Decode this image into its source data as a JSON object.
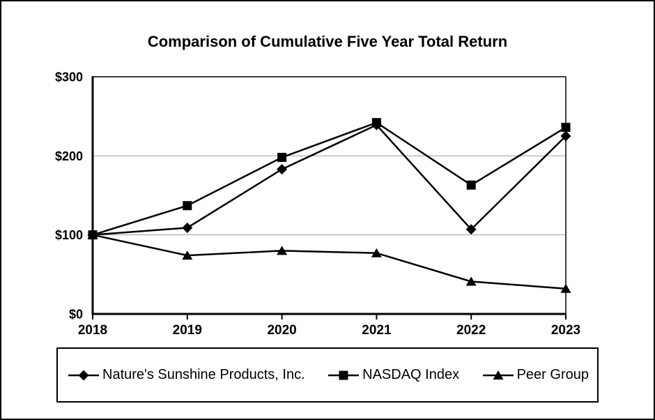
{
  "chart_data": {
    "type": "line",
    "title": "Comparison of Cumulative Five Year Total Return",
    "categories": [
      "2018",
      "2019",
      "2020",
      "2021",
      "2022",
      "2023"
    ],
    "series": [
      {
        "name": "Nature's Sunshine Products, Inc.",
        "marker": "diamond",
        "values": [
          100,
          109,
          183,
          239,
          107,
          225
        ]
      },
      {
        "name": "NASDAQ Index",
        "marker": "square",
        "values": [
          100,
          137,
          198,
          242,
          163,
          236
        ]
      },
      {
        "name": "Peer Group",
        "marker": "triangle",
        "values": [
          100,
          74,
          80,
          77,
          41,
          32
        ]
      }
    ],
    "xlabel": "",
    "ylabel": "",
    "ylim": [
      0,
      300
    ],
    "y_ticks": [
      {
        "label": "$0",
        "value": 0
      },
      {
        "label": "$100",
        "value": 100
      },
      {
        "label": "$200",
        "value": 200
      },
      {
        "label": "$300",
        "value": 300
      }
    ],
    "grid_values": [
      100,
      200
    ],
    "grid_on": true,
    "legend_position": "bottom",
    "colors": {
      "line": "#000000",
      "marker": "#000000",
      "grid": "#a0a0a0",
      "background": "#ffffff",
      "text": "#000000"
    }
  }
}
